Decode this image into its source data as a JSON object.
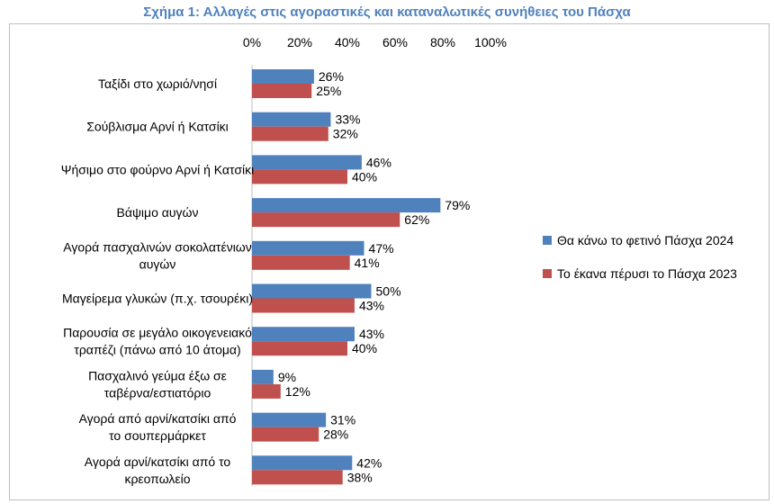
{
  "chart_data": {
    "type": "bar",
    "orientation": "horizontal",
    "title": "Σχήμα 1: Αλλαγές στις αγοραστικές και καταναλωτικές συνήθειες του Πάσχα",
    "xlim": [
      0,
      100
    ],
    "ticks": [
      "0%",
      "20%",
      "40%",
      "60%",
      "80%",
      "100%"
    ],
    "grid": false,
    "legend_position": "right",
    "categories": [
      [
        "Ταξίδι στο χωριό/νησί"
      ],
      [
        "Σούβλισμα Αρνί ή Κατσίκι"
      ],
      [
        "Ψήσιμο στο φούρνο Αρνί ή Κατσίκι"
      ],
      [
        "Βάψιμο αυγών"
      ],
      [
        "Αγορά πασχαλινών σοκολατένιων",
        "αυγών"
      ],
      [
        "Μαγείρεμα γλυκών (π.χ. τσουρέκι)"
      ],
      [
        "Παρουσία σε μεγάλο οικογενειακό",
        "τραπέζι (πάνω από 10 άτομα)"
      ],
      [
        "Πασχαλινό γεύμα έξω σε",
        "ταβέρνα/εστιατόριο"
      ],
      [
        "Αγορά από αρνί/κατσίκι από",
        "το σουπερμάρκετ"
      ],
      [
        "Αγορά αρνί/κατσίκι από το",
        "κρεοπωλείο"
      ]
    ],
    "series": [
      {
        "name": "Θα κάνω το φετινό Πάσχα 2024",
        "color": "#4f81bd",
        "values": [
          26,
          33,
          46,
          79,
          47,
          50,
          43,
          9,
          31,
          42
        ],
        "labels": [
          "26%",
          "33%",
          "46%",
          "79%",
          "47%",
          "50%",
          "43%",
          "9%",
          "31%",
          "42%"
        ]
      },
      {
        "name": "Το έκανα πέρυσι το Πάσχα 2023",
        "color": "#c0504d",
        "values": [
          25,
          32,
          40,
          62,
          41,
          43,
          40,
          12,
          28,
          38
        ],
        "labels": [
          "25%",
          "32%",
          "40%",
          "62%",
          "41%",
          "43%",
          "40%",
          "12%",
          "28%",
          "38%"
        ]
      }
    ]
  }
}
